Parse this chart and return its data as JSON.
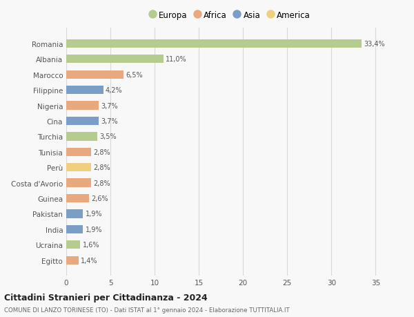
{
  "categories": [
    "Romania",
    "Albania",
    "Marocco",
    "Filippine",
    "Nigeria",
    "Cina",
    "Turchia",
    "Tunisia",
    "Perù",
    "Costa d'Avorio",
    "Guinea",
    "Pakistan",
    "India",
    "Ucraina",
    "Egitto"
  ],
  "values": [
    33.4,
    11.0,
    6.5,
    4.2,
    3.7,
    3.7,
    3.5,
    2.8,
    2.8,
    2.8,
    2.6,
    1.9,
    1.9,
    1.6,
    1.4
  ],
  "labels": [
    "33,4%",
    "11,0%",
    "6,5%",
    "4,2%",
    "3,7%",
    "3,7%",
    "3,5%",
    "2,8%",
    "2,8%",
    "2,8%",
    "2,6%",
    "1,9%",
    "1,9%",
    "1,6%",
    "1,4%"
  ],
  "continent": [
    "Europa",
    "Europa",
    "Africa",
    "Asia",
    "Africa",
    "Asia",
    "Europa",
    "Africa",
    "America",
    "Africa",
    "Africa",
    "Asia",
    "Asia",
    "Europa",
    "Africa"
  ],
  "colors": {
    "Europa": "#b5cc8e",
    "Africa": "#e8a97e",
    "Asia": "#7b9ec7",
    "America": "#f0d080"
  },
  "title": "Cittadini Stranieri per Cittadinanza - 2024",
  "subtitle": "COMUNE DI LANZO TORINESE (TO) - Dati ISTAT al 1° gennaio 2024 - Elaborazione TUTTITALIA.IT",
  "xlim": [
    0,
    37
  ],
  "xticks": [
    0,
    5,
    10,
    15,
    20,
    25,
    30,
    35
  ],
  "background_color": "#f8f8f8",
  "grid_color": "#d8d8d8",
  "bar_height": 0.55,
  "label_fontsize": 7.0,
  "ytick_fontsize": 7.5,
  "xtick_fontsize": 7.5
}
